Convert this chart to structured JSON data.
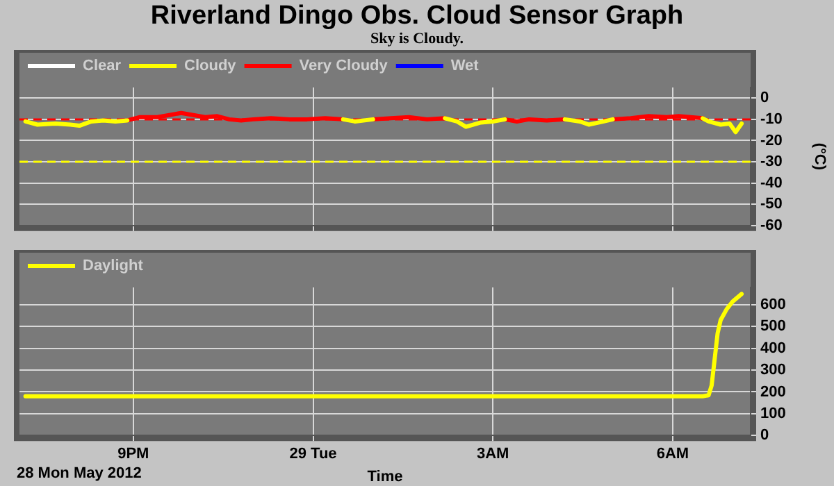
{
  "chart_data": [
    {
      "type": "line",
      "title": "Riverland Dingo Obs. Cloud Sensor Graph",
      "subtitle": "Sky is Cloudy.",
      "ylabel": "(°C)",
      "x": [
        "2012-05-28T19:12",
        "2012-05-28T19:24",
        "2012-05-28T19:42",
        "2012-05-28T19:57",
        "2012-05-28T20:06",
        "2012-05-28T20:18",
        "2012-05-28T20:30",
        "2012-05-28T20:42",
        "2012-05-28T20:54",
        "2012-05-28T21:06",
        "2012-05-28T21:24",
        "2012-05-28T21:36",
        "2012-05-28T21:48",
        "2012-05-28T22:00",
        "2012-05-28T22:12",
        "2012-05-28T22:24",
        "2012-05-28T22:36",
        "2012-05-28T22:48",
        "2012-05-28T23:00",
        "2012-05-28T23:18",
        "2012-05-28T23:36",
        "2012-05-28T23:54",
        "2012-05-29T00:12",
        "2012-05-29T00:30",
        "2012-05-29T00:42",
        "2012-05-29T01:00",
        "2012-05-29T01:18",
        "2012-05-29T01:36",
        "2012-05-29T01:54",
        "2012-05-29T02:12",
        "2012-05-29T02:24",
        "2012-05-29T02:33",
        "2012-05-29T02:48",
        "2012-05-29T03:00",
        "2012-05-29T03:12",
        "2012-05-29T03:24",
        "2012-05-29T03:36",
        "2012-05-29T03:54",
        "2012-05-29T04:12",
        "2012-05-29T04:27",
        "2012-05-29T04:36",
        "2012-05-29T04:51",
        "2012-05-29T05:00",
        "2012-05-29T05:18",
        "2012-05-29T05:36",
        "2012-05-29T05:54",
        "2012-05-29T06:06",
        "2012-05-29T06:18",
        "2012-05-29T06:30",
        "2012-05-29T06:36",
        "2012-05-29T06:48",
        "2012-05-29T06:57",
        "2012-05-29T07:03",
        "2012-05-29T07:09"
      ],
      "series": [
        {
          "name": "Clear",
          "color": "#ffffff",
          "values": [
            null,
            null,
            null,
            null,
            null,
            null,
            null,
            null,
            null,
            null,
            null,
            null,
            null,
            null,
            null,
            null,
            null,
            null,
            null,
            null,
            null,
            null,
            null,
            null,
            null,
            null,
            null,
            null,
            null,
            null,
            null,
            null,
            null,
            null,
            null,
            null,
            null,
            null,
            null,
            null,
            null,
            null,
            null,
            null,
            null,
            null,
            null,
            null,
            null,
            null,
            null,
            null,
            null,
            null
          ]
        },
        {
          "name": "Cloudy",
          "color": "#ffff00",
          "values": [
            -11,
            -12.5,
            -12,
            -12.5,
            -13,
            -11,
            -10.5,
            -11,
            -10.5,
            null,
            null,
            null,
            null,
            null,
            null,
            null,
            null,
            null,
            null,
            null,
            null,
            null,
            null,
            -10,
            -11,
            -10,
            null,
            null,
            null,
            -9.5,
            -11,
            -13.5,
            -11.5,
            -11,
            -10,
            null,
            null,
            null,
            -10,
            -11,
            -12.5,
            -11,
            -10,
            null,
            null,
            null,
            null,
            null,
            -9.5,
            -11,
            -12.5,
            -12,
            -16,
            -12
          ]
        },
        {
          "name": "Very Cloudy",
          "color": "#ff0000",
          "values": [
            null,
            null,
            null,
            null,
            null,
            null,
            null,
            null,
            -10.5,
            -9,
            -9,
            -8,
            -7,
            -8,
            -9,
            -8.5,
            -10,
            -10.5,
            -10,
            -9.5,
            -10,
            -10,
            -9.5,
            -10,
            null,
            -10,
            -9.5,
            -9,
            -10,
            -9.5,
            null,
            null,
            null,
            null,
            -10,
            -11,
            -10,
            -10.5,
            -10,
            null,
            null,
            null,
            -10,
            -9.5,
            -8.5,
            -9,
            -8.5,
            -9,
            -9.5,
            null,
            null,
            null,
            null,
            null
          ]
        },
        {
          "name": "Wet",
          "color": "#0000ff",
          "values": [
            null,
            null,
            null,
            null,
            null,
            null,
            null,
            null,
            null,
            null,
            null,
            null,
            null,
            null,
            null,
            null,
            null,
            null,
            null,
            null,
            null,
            null,
            null,
            null,
            null,
            null,
            null,
            null,
            null,
            null,
            null,
            null,
            null,
            null,
            null,
            null,
            null,
            null,
            null,
            null,
            null,
            null,
            null,
            null,
            null,
            null,
            null,
            null,
            null,
            null,
            null,
            null,
            null,
            null
          ]
        }
      ],
      "xlim": [
        "2012-05-28T19:06",
        "2012-05-29T07:18"
      ],
      "xticks": [
        {
          "value": "2012-05-28T21:00",
          "label": null
        },
        {
          "value": "2012-05-29T00:00",
          "label": null
        },
        {
          "value": "2012-05-29T03:00",
          "label": null
        },
        {
          "value": "2012-05-29T06:00",
          "label": null
        }
      ],
      "ylim": [
        -60,
        5
      ],
      "yticks": [
        -60,
        -50,
        -40,
        -30,
        -20,
        -10,
        0
      ],
      "ref_lines": [
        {
          "axis": "y",
          "value": -10,
          "color": "#ff0000",
          "line_style": "dashed"
        },
        {
          "axis": "y",
          "value": -30,
          "color": "#ffff00",
          "line_style": "dashed"
        }
      ],
      "grid": true,
      "legend": "top left",
      "tick_labels": "y",
      "marker": "none",
      "line_style": "solid"
    },
    {
      "type": "line",
      "xlabel": "Time",
      "annotations": [
        "28 Mon May 2012"
      ],
      "x": [
        "2012-05-28T19:12",
        "2012-05-28T19:42",
        "2012-05-28T20:12",
        "2012-05-28T20:42",
        "2012-05-28T21:12",
        "2012-05-28T21:42",
        "2012-05-28T22:12",
        "2012-05-28T22:42",
        "2012-05-28T23:12",
        "2012-05-28T23:42",
        "2012-05-29T00:12",
        "2012-05-29T00:42",
        "2012-05-29T01:12",
        "2012-05-29T01:42",
        "2012-05-29T02:12",
        "2012-05-29T02:42",
        "2012-05-29T03:12",
        "2012-05-29T03:42",
        "2012-05-29T04:12",
        "2012-05-29T04:42",
        "2012-05-29T05:12",
        "2012-05-29T05:42",
        "2012-05-29T06:12",
        "2012-05-29T06:30",
        "2012-05-29T06:36",
        "2012-05-29T06:39",
        "2012-05-29T06:42",
        "2012-05-29T06:45",
        "2012-05-29T06:48",
        "2012-05-29T06:54",
        "2012-05-29T07:00",
        "2012-05-29T07:09"
      ],
      "series": [
        {
          "name": "Daylight",
          "color": "#ffff00",
          "values": [
            180,
            180,
            180,
            180,
            180,
            180,
            180,
            180,
            180,
            180,
            180,
            180,
            180,
            180,
            180,
            180,
            180,
            180,
            180,
            180,
            180,
            180,
            180,
            180,
            185,
            230,
            350,
            470,
            530,
            580,
            615,
            650
          ]
        }
      ],
      "xlim": [
        "2012-05-28T19:06",
        "2012-05-29T07:18"
      ],
      "xticks": [
        {
          "value": "2012-05-28T21:00",
          "label": "9PM"
        },
        {
          "value": "2012-05-29T00:00",
          "label": "29 Tue"
        },
        {
          "value": "2012-05-29T03:00",
          "label": "3AM"
        },
        {
          "value": "2012-05-29T06:00",
          "label": "6AM"
        }
      ],
      "ylim": [
        0,
        680
      ],
      "yticks": [
        0,
        100,
        200,
        300,
        400,
        500,
        600
      ],
      "grid": true,
      "legend": "top left",
      "marker": "none",
      "line_style": "solid"
    }
  ]
}
